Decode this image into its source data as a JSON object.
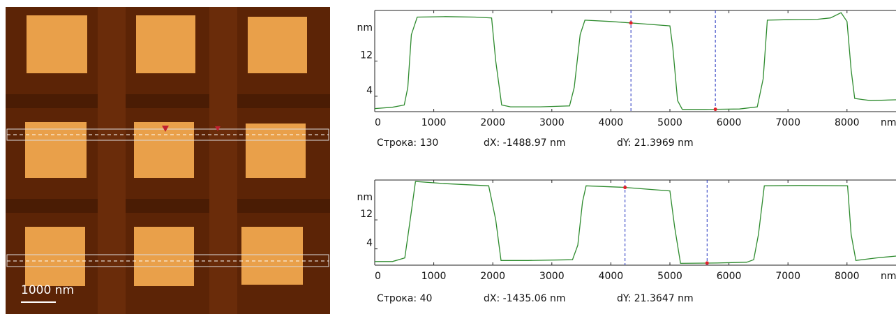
{
  "image": {
    "scale_bar": "1000 nm"
  },
  "chart_data": [
    {
      "type": "line",
      "x_label": "nm",
      "y_label": "nm",
      "color": "#2e8b2e",
      "cursor_color": "#1f2fbf",
      "marker_color": "#e0202a",
      "x": [
        0,
        300,
        500,
        560,
        620,
        720,
        1200,
        1700,
        1980,
        2050,
        2150,
        2300,
        2800,
        3300,
        3380,
        3480,
        3560,
        4000,
        4500,
        5000,
        5050,
        5130,
        5210,
        5600,
        6180,
        6480,
        6580,
        6650,
        7000,
        7500,
        7720,
        7900,
        8000,
        8070,
        8130,
        8400,
        8830
      ],
      "values": [
        1.2,
        1.5,
        2.0,
        6,
        18,
        22.0,
        22.1,
        22.0,
        21.8,
        12,
        2.0,
        1.6,
        1.6,
        1.8,
        6,
        18,
        21.3,
        21.0,
        20.5,
        20.0,
        15,
        3,
        1.0,
        1.0,
        1.1,
        1.6,
        8,
        21.3,
        21.4,
        21.5,
        21.8,
        23.0,
        21,
        10,
        3.5,
        3.0,
        3.2
      ],
      "xlim": [
        0,
        8830
      ],
      "xticks": [
        0,
        1000,
        2000,
        3000,
        4000,
        5000,
        6000,
        7000,
        8000
      ],
      "ylim": [
        0.5,
        23.5
      ],
      "yticks": [
        4,
        12
      ],
      "cursors": [
        4340,
        5770
      ],
      "row_label": "Строка: 130",
      "dx": "dX: -1488.97 nm",
      "dy": "dY: 21.3969 nm"
    },
    {
      "type": "line",
      "x_label": "nm",
      "y_label": "nm",
      "color": "#2e8b2e",
      "cursor_color": "#1f2fbf",
      "marker_color": "#e0202a",
      "x": [
        0,
        300,
        510,
        600,
        690,
        1200,
        1930,
        2050,
        2140,
        2600,
        3350,
        3440,
        3520,
        3580,
        4200,
        5000,
        5080,
        5180,
        5800,
        6300,
        6420,
        6500,
        6600,
        7200,
        8010,
        8070,
        8150,
        8500,
        8830
      ],
      "values": [
        0.5,
        0.5,
        1.5,
        12,
        22.6,
        22.0,
        21.4,
        12,
        0.8,
        0.8,
        1.0,
        5,
        17,
        21.4,
        21.0,
        20.0,
        10,
        0,
        0.1,
        0.3,
        1.0,
        8,
        21.4,
        21.5,
        21.4,
        8,
        0.8,
        1.5,
        2.0
      ],
      "xlim": [
        0,
        8830
      ],
      "xticks": [
        0,
        1000,
        2000,
        3000,
        4000,
        5000,
        6000,
        7000,
        8000
      ],
      "ylim": [
        -0.5,
        23
      ],
      "yticks": [
        4,
        12
      ],
      "cursors": [
        4240,
        5630
      ],
      "row_label": "Строка: 40",
      "dx": "dX: -1435.06 nm",
      "dy": "dY: 21.3647 nm"
    }
  ]
}
